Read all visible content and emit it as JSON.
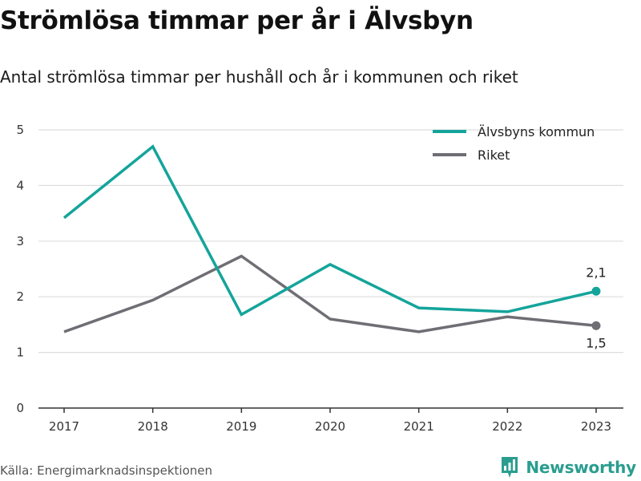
{
  "title": "Strömlösa timmar per år i Älvsbyn",
  "subtitle": "Antal strömlösa timmar per hushåll och år i kommunen och riket",
  "source": "Källa: Energimarknadsinspektionen",
  "brand": "Newsworthy",
  "colors": {
    "accent": "#14a49b",
    "secondary": "#6e6e74",
    "grid": "#dddddd",
    "axis": "#333333"
  },
  "chart_data": {
    "type": "line",
    "x": [
      "2017",
      "2018",
      "2019",
      "2020",
      "2021",
      "2022",
      "2023"
    ],
    "ylim": [
      0,
      5
    ],
    "yticks": [
      0,
      1,
      2,
      3,
      4,
      5
    ],
    "grid": true,
    "legend_position": "top-right",
    "series": [
      {
        "name": "Älvsbyns kommun",
        "color": "#14a49b",
        "values": [
          3.42,
          4.7,
          1.68,
          2.58,
          1.8,
          1.73,
          2.1
        ],
        "end_label": "2,1"
      },
      {
        "name": "Riket",
        "color": "#6e6e74",
        "values": [
          1.37,
          1.94,
          2.73,
          1.6,
          1.37,
          1.64,
          1.48
        ],
        "end_label": "1,5"
      }
    ]
  }
}
